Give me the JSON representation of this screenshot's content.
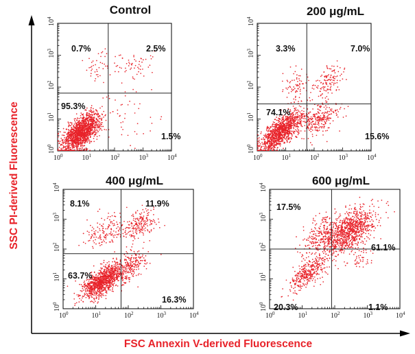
{
  "chart_data": {
    "type": "scatter",
    "xlabel": "FSC Annexin V-derived Fluorescence",
    "ylabel": "SSC PI-derived Fluorescence",
    "axis_scale": "log10",
    "xlim": [
      1,
      10000
    ],
    "ylim": [
      1,
      10000
    ],
    "tick_base": "10",
    "tick_exponents": [
      "0",
      "1",
      "2",
      "3",
      "4"
    ],
    "point_color": "#e8232a",
    "panels": [
      {
        "title": "Control",
        "gate": {
          "x": 60,
          "y": 65
        },
        "quadrants": {
          "upper_left": "0.7%",
          "upper_right": "2.5%",
          "lower_left": "95.3%",
          "lower_right": "1.5%"
        },
        "populations": [
          {
            "share": 0.953,
            "center": [
              7,
              4
            ],
            "spread": [
              0.33,
              0.3
            ],
            "corr": 0.6
          },
          {
            "share": 0.025,
            "center": [
              400,
              500
            ],
            "spread": [
              0.55,
              0.22
            ],
            "corr": 0.0
          },
          {
            "share": 0.007,
            "center": [
              25,
              400
            ],
            "spread": [
              0.2,
              0.25
            ],
            "corr": 0.0
          },
          {
            "share": 0.015,
            "center": [
              250,
              12
            ],
            "spread": [
              0.5,
              0.45
            ],
            "corr": 0.0
          }
        ]
      },
      {
        "title": "200 μg/mL",
        "gate": {
          "x": 55,
          "y": 30
        },
        "quadrants": {
          "upper_left": "3.3%",
          "upper_right": "7.0%",
          "lower_left": "74.1%",
          "lower_right": "15.6%"
        },
        "populations": [
          {
            "share": 0.741,
            "center": [
              7,
              4
            ],
            "spread": [
              0.38,
              0.32
            ],
            "corr": 0.75
          },
          {
            "share": 0.156,
            "center": [
              150,
              10
            ],
            "spread": [
              0.35,
              0.28
            ],
            "corr": 0.5
          },
          {
            "share": 0.07,
            "center": [
              300,
              150
            ],
            "spread": [
              0.3,
              0.3
            ],
            "corr": 0.4
          },
          {
            "share": 0.033,
            "center": [
              20,
              100
            ],
            "spread": [
              0.25,
              0.3
            ],
            "corr": 0.2
          }
        ]
      },
      {
        "title": "400 μg/mL",
        "gate": {
          "x": 60,
          "y": 70
        },
        "quadrants": {
          "upper_left": "8.1%",
          "upper_right": "11.9%",
          "lower_left": "63.7%",
          "lower_right": "16.3%"
        },
        "populations": [
          {
            "share": 0.637,
            "center": [
              15,
              8
            ],
            "spread": [
              0.32,
              0.28
            ],
            "corr": 0.6
          },
          {
            "share": 0.163,
            "center": [
              100,
              25
            ],
            "spread": [
              0.3,
              0.28
            ],
            "corr": 0.5
          },
          {
            "share": 0.119,
            "center": [
              200,
              600
            ],
            "spread": [
              0.3,
              0.28
            ],
            "corr": 0.5
          },
          {
            "share": 0.081,
            "center": [
              20,
              400
            ],
            "spread": [
              0.3,
              0.3
            ],
            "corr": 0.3
          }
        ]
      },
      {
        "title": "600 μg/mL",
        "gate": {
          "x": 80,
          "y": 100
        },
        "quadrants": {
          "upper_left": "17.5%",
          "upper_right": "61.1%",
          "lower_left": "20.3%",
          "lower_right": "1.1%"
        },
        "populations": [
          {
            "share": 0.611,
            "center": [
              300,
              400
            ],
            "spread": [
              0.38,
              0.4
            ],
            "corr": 0.55
          },
          {
            "share": 0.175,
            "center": [
              40,
              250
            ],
            "spread": [
              0.3,
              0.35
            ],
            "corr": 0.3
          },
          {
            "share": 0.203,
            "center": [
              15,
              15
            ],
            "spread": [
              0.3,
              0.3
            ],
            "corr": 0.7
          },
          {
            "share": 0.011,
            "center": [
              500,
              40
            ],
            "spread": [
              0.25,
              0.2
            ],
            "corr": 0.0
          }
        ]
      }
    ]
  }
}
